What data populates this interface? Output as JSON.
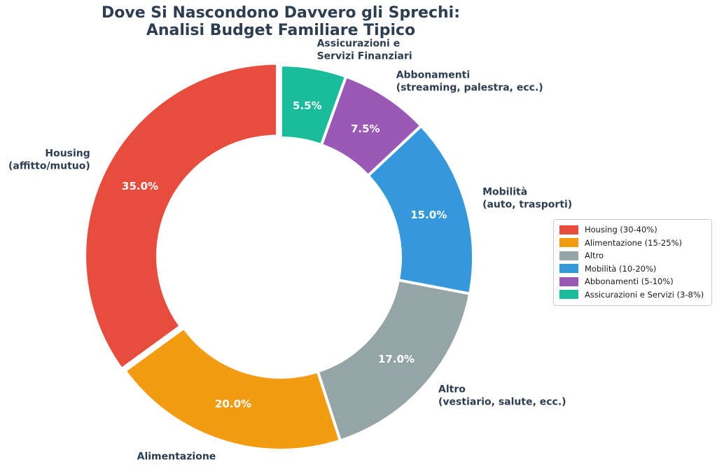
{
  "title": {
    "line1": "Dove Si Nascondono Davvero gli Sprechi:",
    "line2": "Analisi Budget Familiare Tipico"
  },
  "colors": {
    "background": "#ffffff",
    "title_text": "#2c3e50",
    "label_text": "#2c3e50",
    "pct_text": "#ffffff",
    "wedge_edge": "#ffffff",
    "legend_border": "#cccccc",
    "legend_text": "#1a1a1a"
  },
  "chart_data": {
    "type": "pie",
    "subtype": "donut",
    "title": "Dove Si Nascondono Davvero gli Sprechi:\nAnalisi Budget Familiare Tipico",
    "start_angle": 90,
    "counterclockwise": true,
    "legend_position": "right",
    "slices": [
      {
        "id": "housing",
        "name": "Housing",
        "label": "Housing\n(affitto/mutuo)",
        "value": 35.0,
        "pct_label": "35.0%",
        "color": "#e74c3c",
        "explode": 0.02
      },
      {
        "id": "alimentazione",
        "name": "Alimentazione",
        "label": "Alimentazione",
        "value": 20.0,
        "pct_label": "20.0%",
        "color": "#f39c12",
        "explode": 0
      },
      {
        "id": "altro",
        "name": "Altro",
        "label": "Altro\n(vestiario, salute, ecc.)",
        "value": 17.0,
        "pct_label": "17.0%",
        "color": "#95a5a6",
        "explode": 0
      },
      {
        "id": "mobilita",
        "name": "Mobilità",
        "label": "Mobilità\n(auto, trasporti)",
        "value": 15.0,
        "pct_label": "15.0%",
        "color": "#3498db",
        "explode": 0
      },
      {
        "id": "abbonamenti",
        "name": "Abbonamenti",
        "label": "Abbonamenti\n(streaming, palestra, ecc.)",
        "value": 7.5,
        "pct_label": "7.5%",
        "color": "#9b59b6",
        "explode": 0
      },
      {
        "id": "assicurazioni",
        "name": "Assicurazioni e Servizi Finanziari",
        "label": "Assicurazioni e\nServizi Finanziari",
        "value": 5.5,
        "pct_label": "5.5%",
        "color": "#1abc9c",
        "explode": 0
      }
    ]
  },
  "legend": {
    "items": [
      {
        "label": "Housing (30-40%)"
      },
      {
        "label": "Alimentazione (15-25%)"
      },
      {
        "label": "Altro"
      },
      {
        "label": "Mobilità (10-20%)"
      },
      {
        "label": "Abbonamenti (5-10%)"
      },
      {
        "label": "Assicurazioni e Servizi (3-8%)"
      }
    ]
  }
}
